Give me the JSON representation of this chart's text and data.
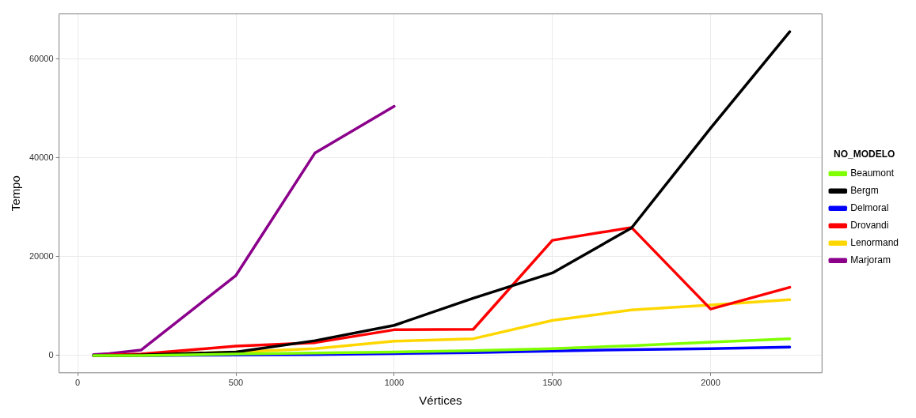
{
  "chart_data": {
    "type": "line",
    "xlabel": "Vértices",
    "ylabel": "Tempo",
    "legend_title": "NO_MODELO",
    "legend": "right",
    "grid": true,
    "line_style": "solid",
    "marker": "none",
    "xlim": [
      -59,
      2352
    ],
    "xticks": [
      0,
      500,
      1000,
      1500,
      2000
    ],
    "ylim": [
      -3500,
      69100
    ],
    "yticks": [
      0,
      20000,
      40000,
      60000
    ],
    "series": [
      {
        "name": "Beaumont",
        "color": "#7fff00",
        "x": [
          50,
          100,
          200,
          500,
          750,
          1000,
          1250,
          1500,
          1750,
          2000,
          2250
        ],
        "values": [
          0,
          0,
          0,
          300,
          500,
          700,
          1000,
          1400,
          2000,
          2700,
          3400
        ]
      },
      {
        "name": "Bergm",
        "color": "#000000",
        "x": [
          50,
          100,
          200,
          500,
          750,
          1000,
          1250,
          1500,
          1750,
          2000,
          2250
        ],
        "values": [
          0,
          0,
          100,
          700,
          3000,
          6100,
          11600,
          16700,
          25800,
          46000,
          65500
        ]
      },
      {
        "name": "Delmoral",
        "color": "#0000ff",
        "x": [
          50,
          100,
          200,
          500,
          750,
          1000,
          1250,
          1500,
          1750,
          2000,
          2250
        ],
        "values": [
          0,
          0,
          0,
          100,
          200,
          400,
          600,
          900,
          1200,
          1400,
          1700
        ]
      },
      {
        "name": "Drovandi",
        "color": "#ff0000",
        "x": [
          50,
          100,
          200,
          500,
          750,
          1000,
          1250,
          1500,
          1750,
          2000,
          2250
        ],
        "values": [
          0,
          100,
          300,
          1900,
          2600,
          5200,
          5300,
          23300,
          25900,
          9400,
          13800
        ]
      },
      {
        "name": "Lenormand",
        "color": "#ffd700",
        "x": [
          200,
          500,
          750,
          1000,
          1250,
          1500,
          1750,
          2000,
          2250
        ],
        "values": [
          200,
          700,
          1400,
          2900,
          3400,
          7100,
          9200,
          10200,
          11300
        ]
      },
      {
        "name": "Marjoram",
        "color": "#8b008b",
        "x": [
          50,
          100,
          200,
          500,
          750,
          1000
        ],
        "values": [
          200,
          400,
          1100,
          16200,
          41000,
          50400
        ]
      }
    ]
  }
}
